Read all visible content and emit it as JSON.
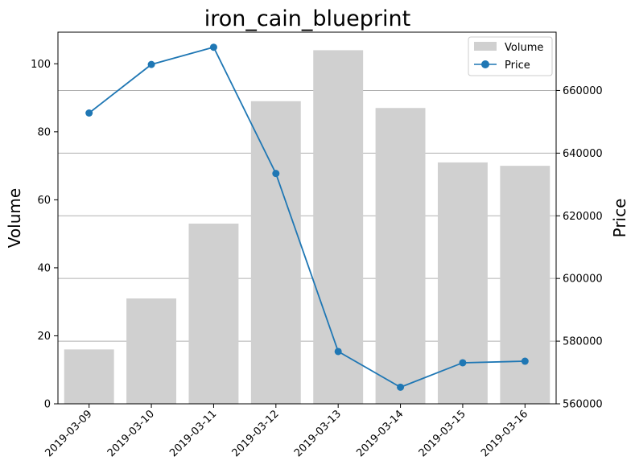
{
  "chart_data": {
    "type": "bar",
    "title": "iron_cain_blueprint",
    "xlabel": "",
    "ylabel": "Volume",
    "y2label": "Price",
    "categories": [
      "2019-03-09",
      "2019-03-10",
      "2019-03-11",
      "2019-03-12",
      "2019-03-13",
      "2019-03-14",
      "2019-03-15",
      "2019-03-16"
    ],
    "series": [
      {
        "name": "Volume",
        "type": "bar",
        "axis": "left",
        "color": "#d0d0d0",
        "values": [
          16,
          31,
          53,
          89,
          104,
          87,
          71,
          70
        ]
      },
      {
        "name": "Price",
        "type": "line",
        "axis": "right",
        "color": "#1f77b4",
        "values": [
          652800,
          668300,
          673800,
          633500,
          576700,
          565300,
          573100,
          573600
        ]
      }
    ],
    "ylim": [
      0,
      109.3
    ],
    "y2lim": [
      560000,
      678600
    ],
    "yticks": [
      0,
      20,
      40,
      60,
      80,
      100
    ],
    "y2ticks": [
      560000,
      580000,
      600000,
      620000,
      640000,
      660000
    ],
    "grid": "horizontal lines at right-axis ticks",
    "legend": "top-right"
  }
}
